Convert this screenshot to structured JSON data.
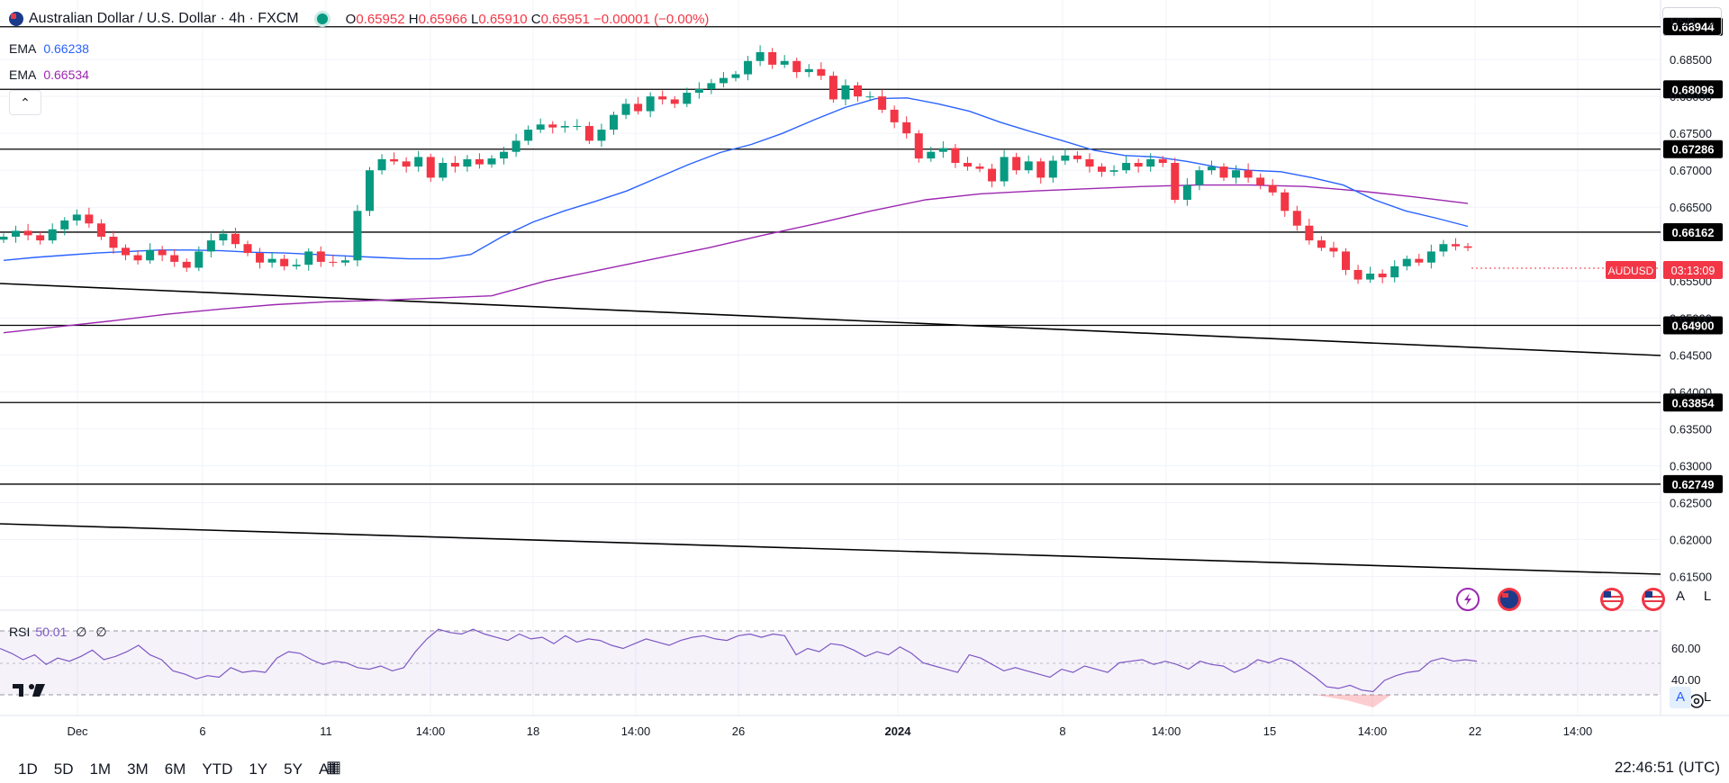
{
  "header": {
    "title": "Australian Dollar / U.S. Dollar · 4h · FXCM",
    "ohlc": {
      "o_label": "O",
      "o": "0.65952",
      "h_label": "H",
      "h": "0.65966",
      "l_label": "L",
      "l": "0.65910",
      "c_label": "C",
      "c": "0.65951",
      "change": "−0.00001 (−0.00%)"
    },
    "currency": "USD"
  },
  "indicators": [
    {
      "name": "EMA",
      "value": "0.66238",
      "color": "#2962ff"
    },
    {
      "name": "EMA",
      "value": "0.66534",
      "color": "#9c27b0"
    }
  ],
  "rsi": {
    "name": "RSI",
    "value": "50.01",
    "extra1": "∅",
    "extra2": "∅"
  },
  "price_badge": {
    "symbol": "AUDUSD",
    "countdown": "03:13:09",
    "color": "#f23645"
  },
  "timeframes": [
    "1D",
    "5D",
    "1M",
    "3M",
    "6M",
    "YTD",
    "1Y",
    "5Y",
    "All"
  ],
  "clock": "22:46:51 (UTC)",
  "chart_data": {
    "type": "candlestick",
    "ylim": [
      0.612,
      0.6916
    ],
    "y_ticks": [
      "0.68500",
      "0.68000",
      "0.67500",
      "0.67000",
      "0.66500",
      "0.65500",
      "0.65000",
      "0.64500",
      "0.64000",
      "0.63500",
      "0.63000",
      "0.62500",
      "0.62000",
      "0.61500"
    ],
    "x_ticks": [
      "Dec",
      "6",
      "11",
      "14:00",
      "18",
      "14:00",
      "26",
      "2024",
      "8",
      "14:00",
      "15",
      "14:00",
      "22",
      "14:00"
    ],
    "horizontal_levels": [
      "0.68944",
      "0.68096",
      "0.67286",
      "0.66162",
      "0.64900",
      "0.63854",
      "0.62749"
    ],
    "close_series": [
      0.661,
      0.6618,
      0.6612,
      0.6605,
      0.662,
      0.6632,
      0.664,
      0.6628,
      0.661,
      0.6595,
      0.6585,
      0.6578,
      0.6592,
      0.6585,
      0.6576,
      0.6568,
      0.659,
      0.6605,
      0.6614,
      0.66,
      0.6588,
      0.6575,
      0.658,
      0.657,
      0.6572,
      0.659,
      0.6576,
      0.6575,
      0.6578,
      0.6645,
      0.67,
      0.6715,
      0.6712,
      0.6705,
      0.6718,
      0.669,
      0.671,
      0.6705,
      0.6715,
      0.6708,
      0.6716,
      0.6725,
      0.674,
      0.6755,
      0.6762,
      0.6758,
      0.676,
      0.676,
      0.674,
      0.6755,
      0.6775,
      0.679,
      0.678,
      0.68,
      0.6796,
      0.679,
      0.6805,
      0.681,
      0.6818,
      0.6825,
      0.683,
      0.6848,
      0.686,
      0.6843,
      0.6848,
      0.6833,
      0.6837,
      0.6828,
      0.6796,
      0.6815,
      0.68,
      0.68,
      0.6782,
      0.6765,
      0.675,
      0.6716,
      0.6725,
      0.673,
      0.671,
      0.6705,
      0.6702,
      0.6685,
      0.6718,
      0.67,
      0.6712,
      0.669,
      0.6713,
      0.672,
      0.6715,
      0.6705,
      0.6698,
      0.67,
      0.671,
      0.6705,
      0.6715,
      0.671,
      0.666,
      0.668,
      0.67,
      0.6705,
      0.669,
      0.67,
      0.669,
      0.668,
      0.667,
      0.6645,
      0.6625,
      0.6605,
      0.6595,
      0.659,
      0.6565,
      0.6552,
      0.656,
      0.6555,
      0.657,
      0.658,
      0.6575,
      0.659,
      0.66,
      0.6597,
      0.6595
    ],
    "ema_blue": [
      0.6578,
      0.6582,
      0.6585,
      0.6588,
      0.659,
      0.6592,
      0.6592,
      0.6591,
      0.6589,
      0.6588,
      0.6586,
      0.6584,
      0.6582,
      0.658,
      0.658,
      0.6586,
      0.661,
      0.663,
      0.6645,
      0.6658,
      0.6672,
      0.669,
      0.6708,
      0.6724,
      0.6735,
      0.675,
      0.6768,
      0.6785,
      0.6797,
      0.6798,
      0.679,
      0.678,
      0.6765,
      0.6752,
      0.674,
      0.6727,
      0.672,
      0.6718,
      0.6712,
      0.6704,
      0.67,
      0.6698,
      0.669,
      0.668,
      0.666,
      0.6645,
      0.6635,
      0.6624
    ],
    "ema_purple": [
      0.648,
      0.6488,
      0.6496,
      0.6505,
      0.6512,
      0.6518,
      0.6522,
      0.6524,
      0.6527,
      0.653,
      0.655,
      0.6565,
      0.658,
      0.6595,
      0.6612,
      0.6628,
      0.6645,
      0.666,
      0.6668,
      0.6672,
      0.6675,
      0.6678,
      0.668,
      0.668,
      0.6678,
      0.6672,
      0.6664,
      0.6655
    ],
    "rsi_series": [
      64,
      61,
      57,
      60,
      54,
      58,
      56,
      59,
      63,
      57,
      59,
      62,
      66,
      60,
      57,
      50,
      48,
      45,
      47,
      46,
      52,
      49,
      50,
      49,
      58,
      62,
      61,
      57,
      54,
      56,
      55,
      52,
      51,
      53,
      50,
      52,
      62,
      70,
      76,
      74,
      73,
      76,
      73,
      71,
      69,
      73,
      70,
      71,
      67,
      72,
      68,
      70,
      69,
      66,
      64,
      67,
      70,
      68,
      66,
      69,
      71,
      72,
      70,
      69,
      72,
      73,
      71,
      73,
      72,
      60,
      64,
      62,
      67,
      66,
      63,
      59,
      62,
      60,
      65,
      61,
      55,
      53,
      51,
      49,
      60,
      58,
      54,
      50,
      52,
      50,
      48,
      46,
      51,
      49,
      53,
      51,
      49,
      55,
      56,
      57,
      54,
      56,
      54,
      51,
      56,
      54,
      53,
      49,
      52,
      57,
      55,
      58,
      56,
      51,
      46,
      40,
      39,
      41,
      38,
      37,
      44,
      47,
      49,
      50,
      56,
      58,
      56,
      57,
      56
    ]
  }
}
